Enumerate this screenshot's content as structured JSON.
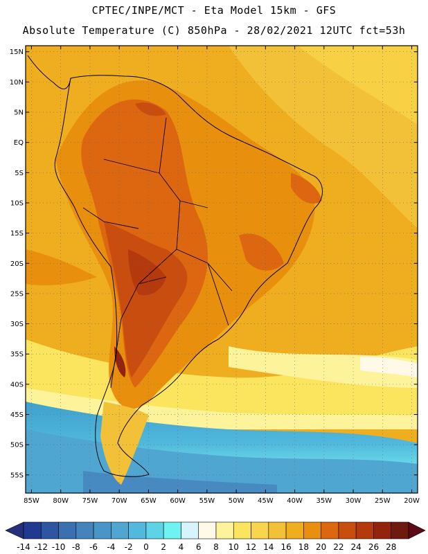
{
  "header": {
    "line1": "CPTEC/INPE/MCT -  Eta Model 15km - GFS",
    "line2": "Absolute Temperature (C) 850hPa - 28/02/2021 12UTC fct=53h"
  },
  "map": {
    "lat_labels": [
      "15N",
      "10N",
      "5N",
      "EQ",
      "5S",
      "10S",
      "15S",
      "20S",
      "25S",
      "30S",
      "35S",
      "40S",
      "45S",
      "50S",
      "55S"
    ],
    "lon_labels": [
      "85W",
      "80W",
      "75W",
      "70W",
      "65W",
      "60W",
      "55W",
      "50W",
      "45W",
      "40W",
      "35W",
      "30W",
      "25W",
      "20W"
    ],
    "lon_range": [
      -86,
      -19
    ],
    "lat_range": [
      -58,
      16
    ]
  },
  "colorbar": {
    "labels": [
      "-14",
      "-12",
      "-10",
      "-8",
      "-6",
      "-4",
      "-2",
      "0",
      "2",
      "4",
      "6",
      "8",
      "10",
      "12",
      "14",
      "16",
      "18",
      "20",
      "22",
      "24",
      "26",
      "28"
    ],
    "colors": [
      "#1f3a8f",
      "#2c56a0",
      "#3a6fb0",
      "#4583bd",
      "#4a95c8",
      "#4fa6d1",
      "#52b8dd",
      "#5ed3e6",
      "#6ff2f2",
      "#d6f4fb",
      "#fff9e8",
      "#fdf39a",
      "#fbe55f",
      "#f8d54a",
      "#f3c138",
      "#efae20",
      "#e8900e",
      "#dd6610",
      "#c94d0e",
      "#b43a0e",
      "#92230c",
      "#6e1a0e"
    ],
    "low_cap_color": "#26307a",
    "high_cap_color": "#5c0a18"
  }
}
